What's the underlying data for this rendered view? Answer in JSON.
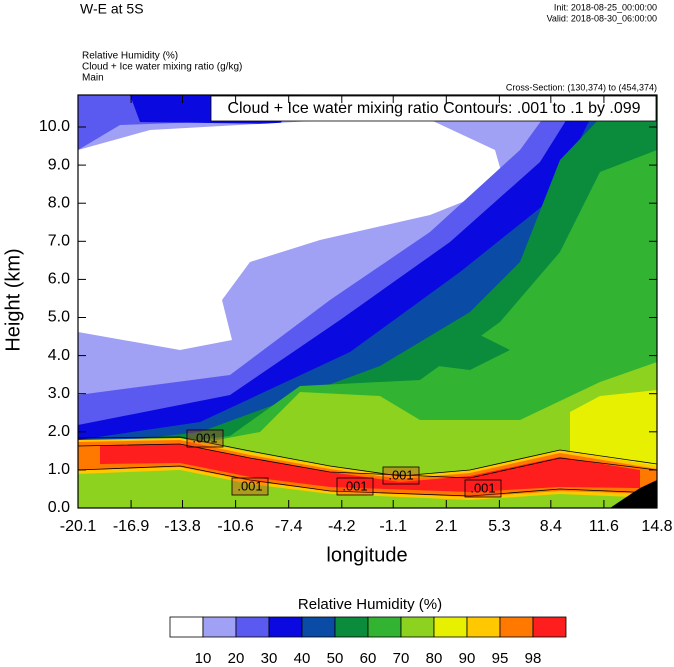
{
  "chart_data": {
    "type": "contour",
    "title": "W-E at 5S",
    "init": "Init: 2018-08-25_00:00:00",
    "valid": "Valid: 2018-08-30_06:00:00",
    "fields": [
      "Relative Humidity   (%)",
      "Cloud + Ice water mixing ratio   (g/kg)",
      "Main"
    ],
    "cross_section": "Cross-Section: (130,374) to (454,374)",
    "contour_info": "Cloud + Ice water mixing ratio Contours: .001 to .1 by .099",
    "contour_labels": [
      ".001",
      ".001",
      ".001",
      ".001",
      ".001"
    ],
    "xlabel": "longitude",
    "ylabel": "Height (km)",
    "xlim": [
      -20.1,
      14.8
    ],
    "xticks": [
      -20.1,
      -16.9,
      -13.8,
      -10.6,
      -7.4,
      -4.2,
      -1.1,
      2.1,
      5.3,
      8.4,
      11.6,
      14.8
    ],
    "ylim": [
      0,
      10.84
    ],
    "yticks": [
      {
        "value": 0,
        "label": "0.0"
      },
      {
        "value": 1,
        "label": "1.0"
      },
      {
        "value": 2,
        "label": "2.0"
      },
      {
        "value": 3,
        "label": "3.0"
      },
      {
        "value": 4,
        "label": "4.0"
      },
      {
        "value": 5,
        "label": "5.0"
      },
      {
        "value": 6,
        "label": "6.0"
      },
      {
        "value": 7,
        "label": "7.0"
      },
      {
        "value": 8,
        "label": "8.0"
      },
      {
        "value": 9,
        "label": "9.0"
      },
      {
        "value": 10,
        "label": "10.0"
      }
    ],
    "colorbar": {
      "title": "Relative Humidity  (%)",
      "levels": [
        10,
        20,
        30,
        40,
        50,
        60,
        70,
        80,
        90,
        95,
        98
      ],
      "colors": [
        "#ffffff",
        "#a0a0f5",
        "#5a5af0",
        "#0a0ae0",
        "#0a4ba5",
        "#0a8c3c",
        "#32b432",
        "#8cd21e",
        "#e6f000",
        "#ffc800",
        "#ff7800",
        "#ff1e1e"
      ]
    }
  }
}
